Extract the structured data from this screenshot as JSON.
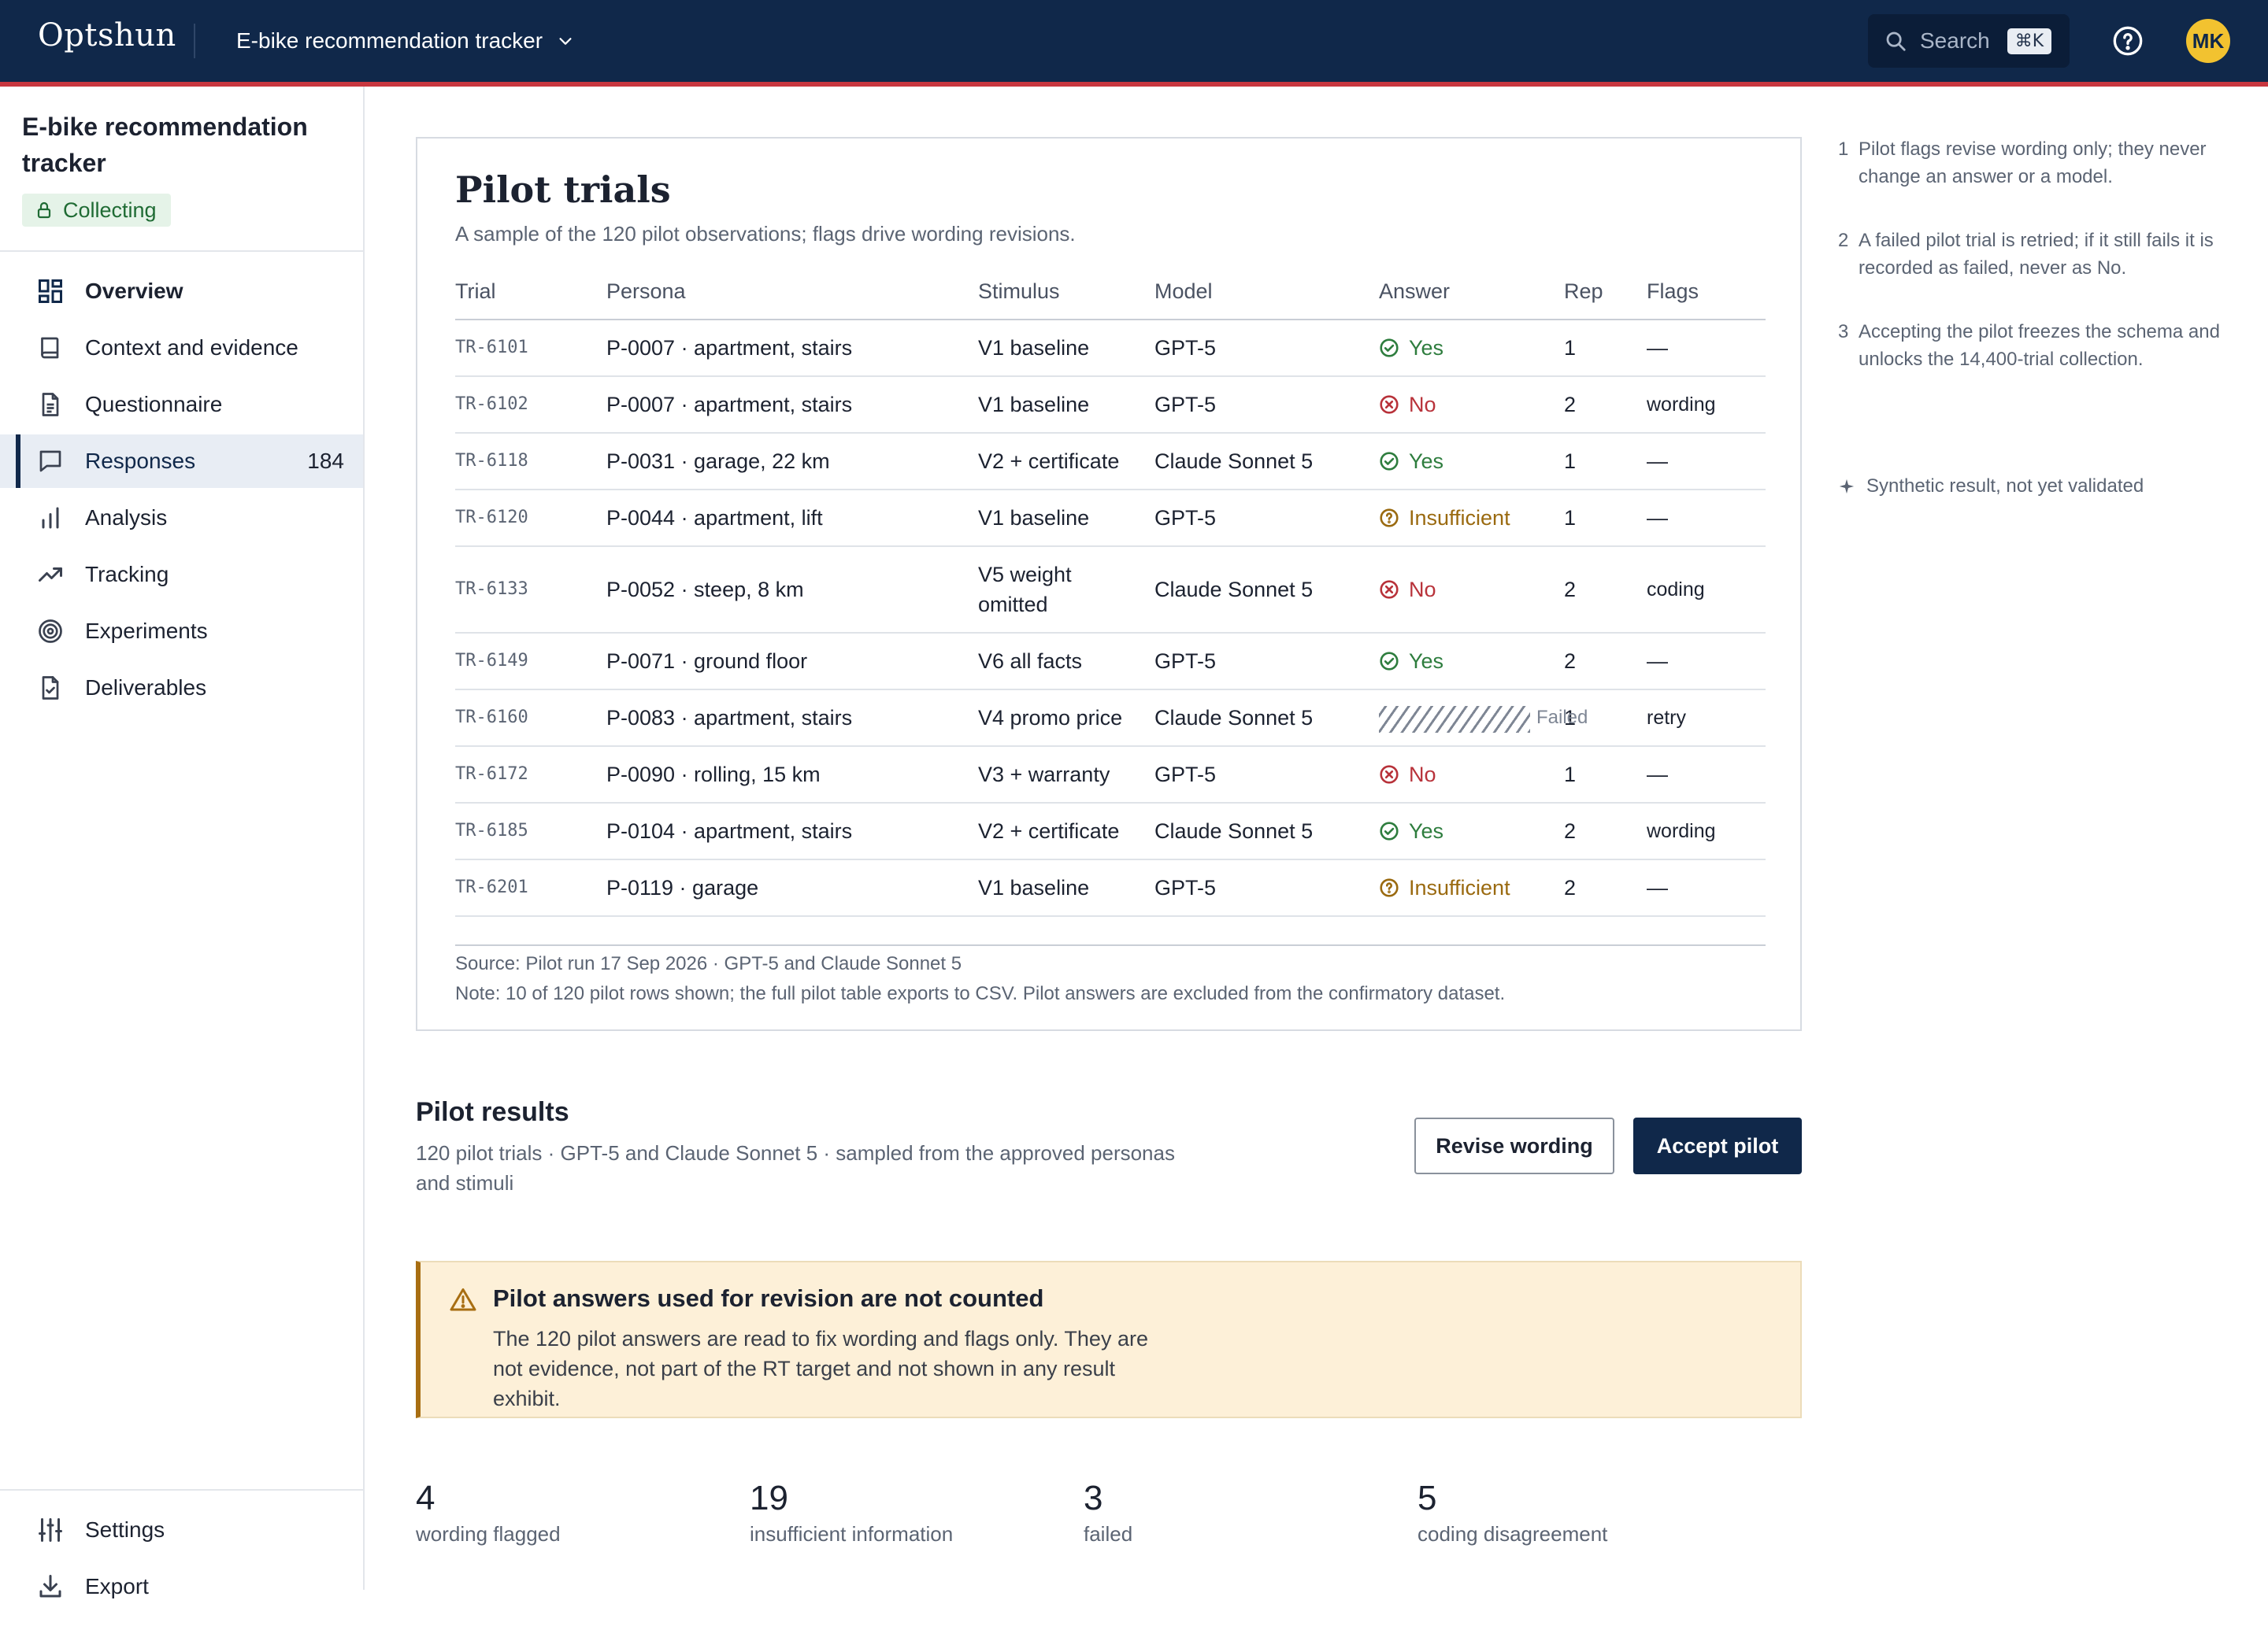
{
  "topbar": {
    "brand": "Optshun",
    "project": "E-bike recommendation tracker",
    "search_placeholder": "Search",
    "search_shortcut": "⌘K",
    "avatar_initials": "MK"
  },
  "sidebar": {
    "title": "E-bike recommendation tracker",
    "status": "Collecting",
    "items": [
      {
        "label": "Overview",
        "icon": "grid-icon"
      },
      {
        "label": "Context and evidence",
        "icon": "book-icon"
      },
      {
        "label": "Questionnaire",
        "icon": "document-icon"
      },
      {
        "label": "Responses",
        "icon": "chat-icon",
        "count": "184",
        "active": true
      },
      {
        "label": "Analysis",
        "icon": "bar-chart-icon"
      },
      {
        "label": "Tracking",
        "icon": "trend-icon"
      },
      {
        "label": "Experiments",
        "icon": "target-icon"
      },
      {
        "label": "Deliverables",
        "icon": "file-check-icon"
      }
    ],
    "bottom_items": [
      {
        "label": "Settings",
        "icon": "sliders-icon"
      },
      {
        "label": "Export",
        "icon": "download-icon"
      }
    ]
  },
  "card": {
    "title": "Pilot trials",
    "subtitle": "A sample of the 120 pilot observations; flags drive wording revisions.",
    "columns": [
      "Trial",
      "Persona",
      "Stimulus",
      "Model",
      "Answer",
      "Rep",
      "Flags"
    ],
    "rows": [
      {
        "trial": "TR-6101",
        "persona": "P-0007 · apartment, stairs",
        "stimulus": "V1 baseline",
        "model": "GPT-5",
        "answer": "Yes",
        "rep": "1",
        "flag": "—"
      },
      {
        "trial": "TR-6102",
        "persona": "P-0007 · apartment, stairs",
        "stimulus": "V1 baseline",
        "model": "GPT-5",
        "answer": "No",
        "rep": "2",
        "flag": "wording"
      },
      {
        "trial": "TR-6118",
        "persona": "P-0031 · garage, 22 km",
        "stimulus": "V2 + certificate",
        "model": "Claude Sonnet 5",
        "answer": "Yes",
        "rep": "1",
        "flag": "—"
      },
      {
        "trial": "TR-6120",
        "persona": "P-0044 · apartment, lift",
        "stimulus": "V1 baseline",
        "model": "GPT-5",
        "answer": "Insufficient",
        "rep": "1",
        "flag": "—"
      },
      {
        "trial": "TR-6133",
        "persona": "P-0052 · steep, 8 km",
        "stimulus": "V5 weight omitted",
        "model": "Claude Sonnet 5",
        "answer": "No",
        "rep": "2",
        "flag": "coding"
      },
      {
        "trial": "TR-6149",
        "persona": "P-0071 · ground floor",
        "stimulus": "V6 all facts",
        "model": "GPT-5",
        "answer": "Yes",
        "rep": "2",
        "flag": "—"
      },
      {
        "trial": "TR-6160",
        "persona": "P-0083 · apartment, stairs",
        "stimulus": "V4 promo price",
        "model": "Claude Sonnet 5",
        "answer": "Failed",
        "rep": "1",
        "flag": "retry"
      },
      {
        "trial": "TR-6172",
        "persona": "P-0090 · rolling, 15 km",
        "stimulus": "V3 + warranty",
        "model": "GPT-5",
        "answer": "No",
        "rep": "1",
        "flag": "—"
      },
      {
        "trial": "TR-6185",
        "persona": "P-0104 · apartment, stairs",
        "stimulus": "V2 + certificate",
        "model": "Claude Sonnet 5",
        "answer": "Yes",
        "rep": "2",
        "flag": "wording"
      },
      {
        "trial": "TR-6201",
        "persona": "P-0119 · garage",
        "stimulus": "V1 baseline",
        "model": "GPT-5",
        "answer": "Insufficient",
        "rep": "2",
        "flag": "—"
      }
    ],
    "source": "Source: Pilot run 17 Sep 2026 · GPT-5 and Claude Sonnet 5",
    "note": "Note: 10 of 120 pilot rows shown; the full pilot table exports to CSV. Pilot answers are excluded from the confirmatory dataset."
  },
  "notes": [
    {
      "num": "1",
      "text": "Pilot flags revise wording only; they never change an answer or a model."
    },
    {
      "num": "2",
      "text": "A failed pilot trial is retried; if it still fails it is recorded as failed, never as No."
    },
    {
      "num": "3",
      "text": "Accepting the pilot freezes the schema and unlocks the 14,400-trial collection."
    }
  ],
  "synthetic_note": "Synthetic result, not yet validated",
  "pilot_results": {
    "title": "Pilot results",
    "subtitle": "120 pilot trials · GPT-5 and Claude Sonnet 5 · sampled from the approved personas and stimuli",
    "revise_label": "Revise wording",
    "accept_label": "Accept pilot"
  },
  "warning": {
    "title": "Pilot answers used for revision are not counted",
    "body": "The 120 pilot answers are read to fix wording and flags only. They are not evidence, not part of the RT target and not shown in any result exhibit."
  },
  "stats": [
    {
      "value": "4",
      "label": "wording flagged"
    },
    {
      "value": "19",
      "label": "insufficient information"
    },
    {
      "value": "3",
      "label": "failed"
    },
    {
      "value": "5",
      "label": "coding disagreement"
    }
  ],
  "colors": {
    "navy": "#10284a",
    "accent_red": "#c8373f",
    "yes_green": "#2e7d3e",
    "no_red": "#b8323a",
    "insufficient_amber": "#9a6a10",
    "warning_bg": "#fdf0d8"
  }
}
